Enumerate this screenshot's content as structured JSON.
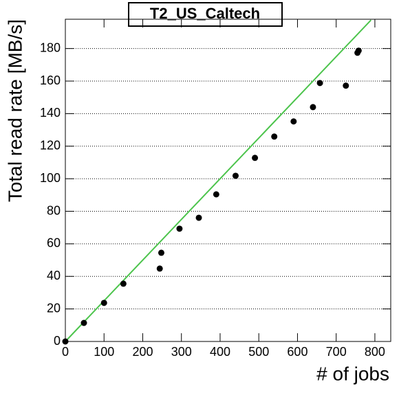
{
  "chart_data": {
    "type": "scatter",
    "title": "T2_US_Caltech",
    "x_label": "# of jobs",
    "y_label": "Total read rate [MB/s]",
    "xlim": [
      0,
      841
    ],
    "ylim": [
      0,
      198
    ],
    "xticks": [
      0,
      100,
      200,
      300,
      400,
      500,
      600,
      700,
      800
    ],
    "yticks": [
      0,
      20,
      40,
      60,
      80,
      100,
      120,
      140,
      160,
      180
    ],
    "grid": true,
    "series": [
      {
        "type": "scatter",
        "color": "#000000",
        "x": [
          0,
          48,
          100,
          150,
          244,
          248,
          295,
          345,
          390,
          440,
          490,
          540,
          590,
          640,
          658,
          725,
          755,
          758
        ],
        "values": [
          0,
          11.4,
          23.7,
          35.5,
          44.8,
          54.5,
          69.3,
          76,
          90.4,
          101.8,
          112.8,
          125.9,
          135.2,
          144,
          158.8,
          157.2,
          177.4,
          178.7
        ]
      },
      {
        "type": "line",
        "color": "#4cc44c",
        "x": [
          0,
          790
        ],
        "values": [
          0,
          197.5
        ]
      }
    ]
  }
}
